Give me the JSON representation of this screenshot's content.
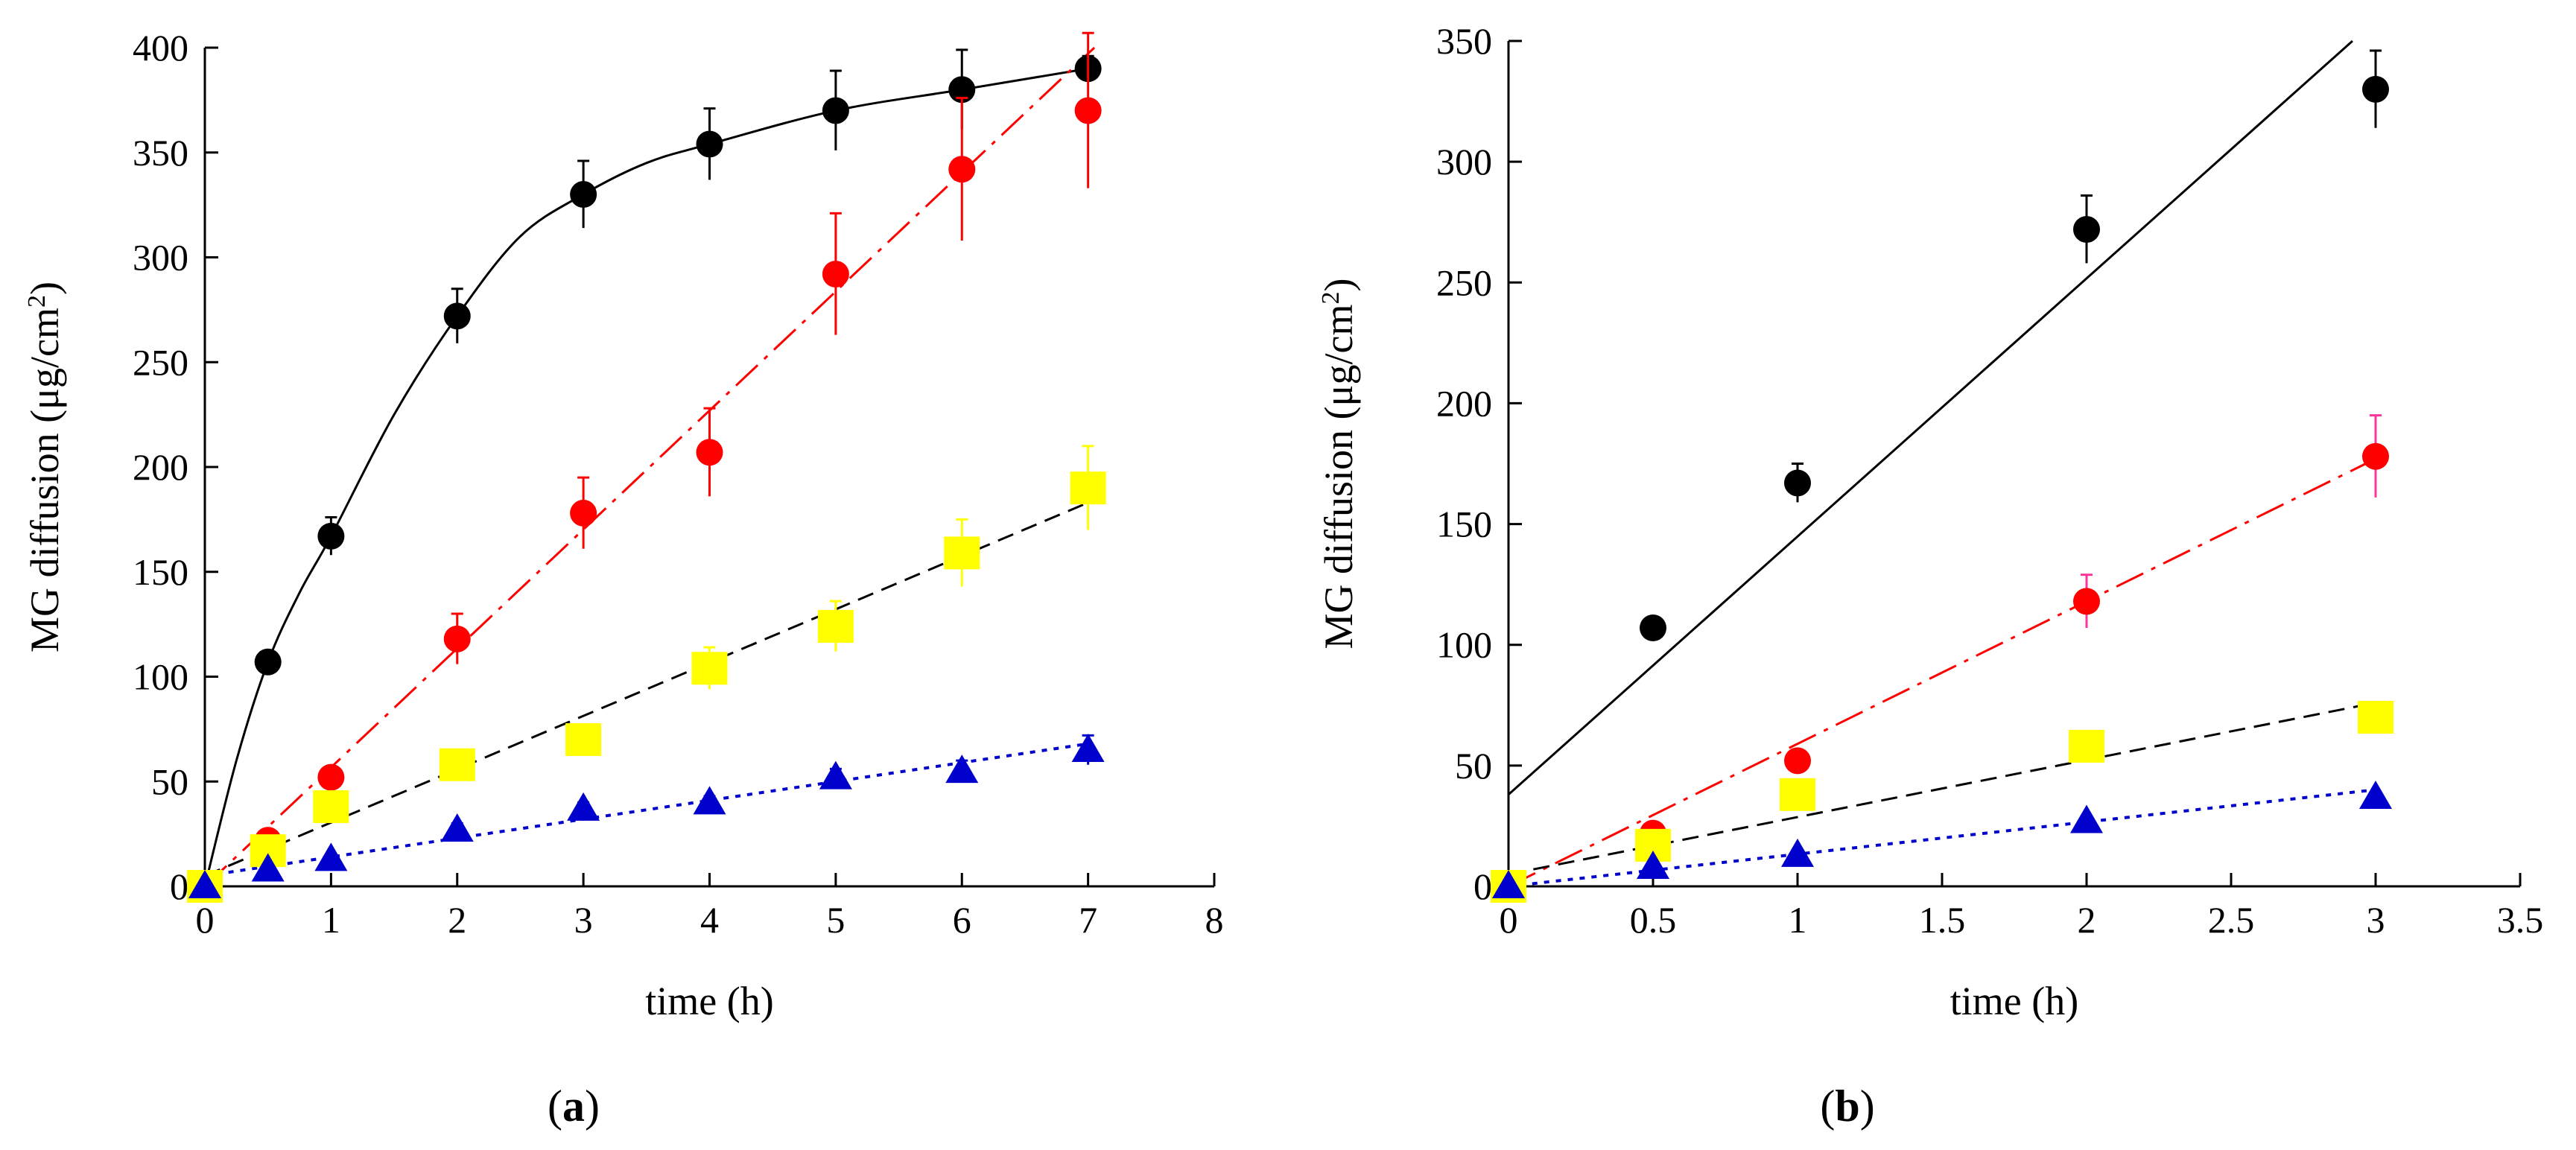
{
  "colors": {
    "black": "#000000",
    "red": "#ff0000",
    "yellow": "#ffff00",
    "blue": "#0000cc",
    "pink": "#ff3399"
  },
  "chart_data": [
    {
      "type": "scatter",
      "panel_label": "a",
      "xlabel": "time (h)",
      "ylabel_prefix": "MG diffusion (μg/cm",
      "ylabel_sup": "2",
      "ylabel_suffix": ")",
      "xlim": [
        0,
        8
      ],
      "ylim": [
        0,
        400
      ],
      "xticks": [
        0,
        1,
        2,
        3,
        4,
        5,
        6,
        7,
        8
      ],
      "yticks": [
        0,
        50,
        100,
        150,
        200,
        250,
        300,
        350,
        400
      ],
      "grid": false,
      "series": [
        {
          "marker": "circle",
          "color": "black",
          "x": [
            0,
            0.5,
            1,
            2,
            3,
            4,
            5,
            6,
            7
          ],
          "y": [
            0,
            107,
            167,
            272,
            330,
            354,
            370,
            380,
            390
          ],
          "err": [
            0,
            4,
            9,
            13,
            16,
            17,
            19,
            19,
            6
          ]
        },
        {
          "marker": "circle",
          "color": "red",
          "x": [
            0,
            0.5,
            1,
            2,
            3,
            4,
            5,
            6,
            7
          ],
          "y": [
            0,
            22,
            52,
            118,
            178,
            207,
            292,
            342,
            370
          ],
          "err": [
            0,
            3,
            5,
            12,
            17,
            21,
            29,
            34,
            37
          ]
        },
        {
          "marker": "square",
          "color": "yellow",
          "x": [
            0,
            0.5,
            1,
            2,
            3,
            4,
            5,
            6,
            7
          ],
          "y": [
            0,
            17,
            38,
            58,
            70,
            104,
            124,
            159,
            190
          ],
          "err": [
            0,
            3,
            4,
            4,
            4,
            10,
            12,
            16,
            20
          ]
        },
        {
          "marker": "triangle",
          "color": "blue",
          "x": [
            0,
            0.5,
            1,
            2,
            3,
            4,
            5,
            6,
            7
          ],
          "y": [
            0,
            8,
            13,
            27,
            37,
            40,
            52,
            55,
            65
          ],
          "err": [
            0,
            2,
            2,
            3,
            3,
            3,
            4,
            5,
            7
          ]
        }
      ],
      "fits": [
        {
          "kind": "curve",
          "style": "solid",
          "color": "black",
          "x": [
            0,
            0.25,
            0.5,
            0.75,
            1,
            1.5,
            2,
            2.5,
            3,
            3.5,
            4,
            5,
            6,
            7
          ],
          "y": [
            0,
            60,
            107,
            140,
            167,
            225,
            272,
            310,
            330,
            345,
            354,
            370,
            380,
            390
          ]
        },
        {
          "kind": "line",
          "style": "dashdot",
          "color": "red",
          "x": [
            0,
            7.05
          ],
          "y": [
            0,
            400
          ]
        },
        {
          "kind": "line",
          "style": "dashed",
          "color": "black",
          "x": [
            0,
            7
          ],
          "y": [
            5,
            183
          ]
        },
        {
          "kind": "line",
          "style": "dotted",
          "color": "blue",
          "x": [
            0,
            7
          ],
          "y": [
            5,
            68
          ]
        }
      ]
    },
    {
      "type": "scatter",
      "panel_label": "b",
      "xlabel": "time (h)",
      "ylabel_prefix": "MG diffusion (μg/cm",
      "ylabel_sup": "2",
      "ylabel_suffix": ")",
      "xlim": [
        0,
        3.5
      ],
      "ylim": [
        0,
        350
      ],
      "xticks": [
        0,
        0.5,
        1,
        1.5,
        2,
        2.5,
        3,
        3.5
      ],
      "yticks": [
        0,
        50,
        100,
        150,
        200,
        250,
        300,
        350
      ],
      "grid": false,
      "series": [
        {
          "marker": "circle",
          "color": "black",
          "x": [
            0,
            0.5,
            1,
            2,
            3
          ],
          "y": [
            0,
            107,
            167,
            272,
            330
          ],
          "err": [
            0,
            4,
            8,
            14,
            16
          ]
        },
        {
          "marker": "circle",
          "color": "red",
          "x": [
            0,
            0.5,
            1,
            2,
            3
          ],
          "y": [
            0,
            22,
            52,
            118,
            178
          ],
          "err": [
            0,
            2,
            4,
            11,
            17
          ]
        },
        {
          "marker": "square",
          "color": "yellow",
          "x": [
            0,
            0.5,
            1,
            2,
            3
          ],
          "y": [
            0,
            17,
            38,
            58,
            70
          ],
          "err": [
            0,
            2,
            3,
            3,
            3
          ]
        },
        {
          "marker": "triangle",
          "color": "blue",
          "x": [
            0,
            0.5,
            1,
            2,
            3
          ],
          "y": [
            0,
            8,
            13,
            27,
            37
          ],
          "err": [
            0,
            1,
            2,
            2,
            2
          ]
        }
      ],
      "fits": [
        {
          "kind": "line",
          "style": "solid",
          "color": "black",
          "x": [
            0,
            2.92
          ],
          "y": [
            38,
            350
          ]
        },
        {
          "kind": "line",
          "style": "dashdot",
          "color": "red",
          "x": [
            0,
            3
          ],
          "y": [
            0,
            177
          ]
        },
        {
          "kind": "line",
          "style": "dashed",
          "color": "black",
          "x": [
            0,
            3
          ],
          "y": [
            5,
            76
          ]
        },
        {
          "kind": "line",
          "style": "dotted",
          "color": "blue",
          "x": [
            0,
            3
          ],
          "y": [
            0,
            40
          ]
        }
      ]
    }
  ]
}
